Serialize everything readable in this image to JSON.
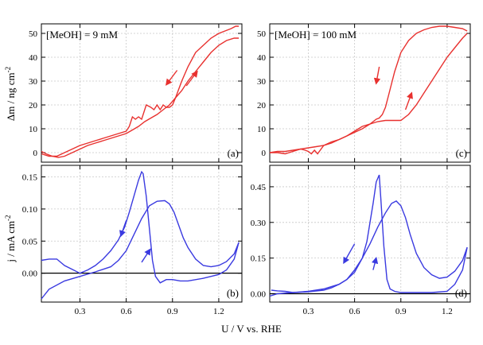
{
  "chart_data": [
    {
      "panel": "(a)",
      "type": "line",
      "annotation": "[MeOH] = 9 mM",
      "xlabel": "",
      "ylabel": "Δm / ng cm",
      "ylabel_sup": "-2",
      "xlim": [
        0.05,
        1.35
      ],
      "ylim": [
        -4,
        54
      ],
      "xticks": [
        0.3,
        0.6,
        0.9,
        1.2
      ],
      "yticks": [
        0,
        10,
        20,
        30,
        40,
        50
      ],
      "ytick_labels": [
        "0",
        "10",
        "20",
        "30",
        "40",
        "50"
      ],
      "color": "#e8312f",
      "series": [
        {
          "x": [
            0.05,
            0.08,
            0.12,
            0.16,
            0.2,
            0.25,
            0.3,
            0.35,
            0.4,
            0.45,
            0.5,
            0.55,
            0.6,
            0.64,
            0.68,
            0.72,
            0.76,
            0.8,
            0.84,
            0.88,
            0.92,
            0.96,
            1.0,
            1.05,
            1.1,
            1.15,
            1.2,
            1.25,
            1.3,
            1.33
          ],
          "y": [
            0.5,
            -0.5,
            -1.5,
            -2,
            -1.5,
            0,
            1.5,
            3,
            4,
            5,
            6,
            7,
            8,
            9.5,
            11,
            13,
            14.5,
            16,
            18,
            20,
            23,
            26,
            30,
            34,
            38,
            42,
            45,
            47,
            48,
            48
          ]
        },
        {
          "x": [
            1.33,
            1.31,
            1.28,
            1.24,
            1.2,
            1.15,
            1.1,
            1.05,
            1.0,
            0.96,
            0.92,
            0.9,
            0.88,
            0.86,
            0.84,
            0.82,
            0.8,
            0.78,
            0.76,
            0.73,
            0.7,
            0.68,
            0.66,
            0.64,
            0.62,
            0.6,
            0.55,
            0.5,
            0.45,
            0.4,
            0.35,
            0.3,
            0.25,
            0.2,
            0.15,
            0.1,
            0.05
          ],
          "y": [
            53,
            53,
            52,
            51,
            50,
            48,
            45,
            42,
            36,
            30,
            23,
            20,
            19,
            19,
            20,
            18,
            20,
            18,
            19,
            20,
            14,
            15,
            14,
            15,
            11,
            9,
            8,
            7,
            6,
            5,
            4,
            3,
            1.5,
            0,
            -1.5,
            -1.5,
            -0.5
          ]
        }
      ],
      "arrows": [
        {
          "x1": 0.93,
          "y1": 34.5,
          "x2": 0.86,
          "y2": 28.5
        },
        {
          "x1": 0.99,
          "y1": 28,
          "x2": 1.06,
          "y2": 34
        }
      ]
    },
    {
      "panel": "(b)",
      "type": "line",
      "annotation": "",
      "xlabel": "",
      "ylabel": "j / mA cm",
      "ylabel_sup": "-2",
      "xlim": [
        0.05,
        1.35
      ],
      "ylim": [
        -0.045,
        0.168
      ],
      "xticks": [
        0.3,
        0.6,
        0.9,
        1.2
      ],
      "yticks": [
        0,
        0.05,
        0.1,
        0.15
      ],
      "ytick_labels": [
        "0.00",
        "0.05",
        "0.10",
        "0.15"
      ],
      "zero_line": true,
      "color": "#3a3ae0",
      "series": [
        {
          "x": [
            0.05,
            0.1,
            0.2,
            0.3,
            0.4,
            0.5,
            0.55,
            0.6,
            0.65,
            0.7,
            0.75,
            0.8,
            0.85,
            0.88,
            0.91,
            0.94,
            0.97,
            1.0,
            1.05,
            1.1,
            1.15,
            1.2,
            1.25,
            1.3,
            1.33
          ],
          "y": [
            -0.04,
            -0.025,
            -0.012,
            -0.005,
            0.002,
            0.01,
            0.02,
            0.035,
            0.06,
            0.085,
            0.105,
            0.112,
            0.113,
            0.108,
            0.095,
            0.075,
            0.055,
            0.04,
            0.022,
            0.012,
            0.01,
            0.012,
            0.018,
            0.03,
            0.048
          ]
        },
        {
          "x": [
            1.33,
            1.3,
            1.25,
            1.2,
            1.1,
            1.0,
            0.95,
            0.9,
            0.86,
            0.82,
            0.79,
            0.77,
            0.75,
            0.73,
            0.71,
            0.7,
            0.68,
            0.65,
            0.62,
            0.59,
            0.55,
            0.5,
            0.45,
            0.4,
            0.35,
            0.3,
            0.2,
            0.15,
            0.1,
            0.05
          ],
          "y": [
            0.048,
            0.022,
            0.005,
            -0.002,
            -0.008,
            -0.012,
            -0.012,
            -0.01,
            -0.01,
            -0.015,
            -0.005,
            0.02,
            0.07,
            0.12,
            0.155,
            0.158,
            0.145,
            0.12,
            0.095,
            0.072,
            0.052,
            0.035,
            0.022,
            0.012,
            0.005,
            0.0,
            0.012,
            0.022,
            0.022,
            0.02
          ]
        }
      ],
      "arrows": [
        {
          "x1": 0.6,
          "y1": 0.082,
          "x2": 0.565,
          "y2": 0.058
        },
        {
          "x1": 0.7,
          "y1": 0.017,
          "x2": 0.755,
          "y2": 0.037
        }
      ]
    },
    {
      "panel": "(c)",
      "type": "line",
      "annotation": "[MeOH] = 100 mM",
      "xlabel": "",
      "ylabel": "",
      "xlim": [
        0.05,
        1.35
      ],
      "ylim": [
        -4,
        54
      ],
      "xticks": [
        0.3,
        0.6,
        0.9,
        1.2
      ],
      "yticks": [
        0,
        10,
        20,
        30,
        40,
        50
      ],
      "ytick_labels": [
        "0",
        "10",
        "20",
        "30",
        "40",
        "50"
      ],
      "color": "#e8312f",
      "series": [
        {
          "x": [
            0.05,
            0.1,
            0.15,
            0.2,
            0.25,
            0.28,
            0.3,
            0.32,
            0.34,
            0.36,
            0.4,
            0.45,
            0.5,
            0.55,
            0.6,
            0.65,
            0.7,
            0.75,
            0.8,
            0.85,
            0.9,
            0.95,
            1.0,
            1.05,
            1.1,
            1.15,
            1.2,
            1.25,
            1.3,
            1.33
          ],
          "y": [
            0,
            0,
            -0.5,
            0.5,
            1.5,
            1,
            0.5,
            -0.5,
            1,
            -0.5,
            3,
            4,
            5.5,
            7,
            8.5,
            10,
            12,
            13,
            13.5,
            13.5,
            13.5,
            16,
            20,
            25,
            30,
            35,
            40,
            44,
            48,
            50
          ]
        },
        {
          "x": [
            1.33,
            1.3,
            1.25,
            1.2,
            1.15,
            1.1,
            1.05,
            1.0,
            0.95,
            0.9,
            0.86,
            0.82,
            0.8,
            0.78,
            0.76,
            0.74,
            0.72,
            0.7,
            0.65,
            0.6,
            0.55,
            0.5,
            0.45,
            0.4,
            0.35,
            0.3,
            0.25,
            0.2,
            0.15,
            0.1,
            0.05
          ],
          "y": [
            51,
            52,
            52.5,
            53,
            53,
            52.5,
            51.5,
            50,
            47,
            42,
            34,
            24,
            19,
            16,
            14.5,
            14,
            13,
            12,
            11,
            9,
            7,
            5.5,
            4.5,
            3,
            2.5,
            2,
            1.5,
            1,
            0.5,
            0.5,
            0
          ]
        }
      ],
      "arrows": [
        {
          "x1": 0.76,
          "y1": 36,
          "x2": 0.74,
          "y2": 29
        },
        {
          "x1": 0.93,
          "y1": 18,
          "x2": 0.97,
          "y2": 25
        }
      ]
    },
    {
      "panel": "(d)",
      "type": "line",
      "annotation": "",
      "xlabel": "",
      "ylabel": "",
      "xlim": [
        0.05,
        1.35
      ],
      "ylim": [
        -0.035,
        0.54
      ],
      "xticks": [
        0.3,
        0.6,
        0.9,
        1.2
      ],
      "yticks": [
        0,
        0.15,
        0.3,
        0.45
      ],
      "ytick_labels": [
        "0.00",
        "0.15",
        "0.30",
        "0.45"
      ],
      "zero_line": true,
      "color": "#3a3ae0",
      "series": [
        {
          "x": [
            0.05,
            0.1,
            0.2,
            0.3,
            0.4,
            0.5,
            0.55,
            0.6,
            0.65,
            0.7,
            0.75,
            0.8,
            0.84,
            0.87,
            0.9,
            0.93,
            0.96,
            1.0,
            1.05,
            1.1,
            1.15,
            1.2,
            1.25,
            1.3,
            1.33
          ],
          "y": [
            -0.01,
            0.0,
            0.005,
            0.01,
            0.02,
            0.04,
            0.06,
            0.1,
            0.15,
            0.21,
            0.28,
            0.34,
            0.38,
            0.39,
            0.37,
            0.32,
            0.25,
            0.17,
            0.11,
            0.08,
            0.065,
            0.07,
            0.095,
            0.14,
            0.195
          ]
        },
        {
          "x": [
            1.33,
            1.3,
            1.25,
            1.2,
            1.1,
            1.0,
            0.95,
            0.9,
            0.86,
            0.83,
            0.81,
            0.79,
            0.77,
            0.76,
            0.74,
            0.72,
            0.7,
            0.68,
            0.65,
            0.6,
            0.55,
            0.5,
            0.45,
            0.4,
            0.3,
            0.2,
            0.15,
            0.1,
            0.06
          ],
          "y": [
            0.195,
            0.1,
            0.04,
            0.01,
            0.005,
            0.005,
            0.005,
            0.005,
            0.01,
            0.02,
            0.06,
            0.2,
            0.4,
            0.5,
            0.47,
            0.38,
            0.3,
            0.22,
            0.15,
            0.09,
            0.06,
            0.04,
            0.025,
            0.015,
            0.008,
            0.005,
            0.01,
            0.012,
            0.015
          ]
        }
      ],
      "arrows": [
        {
          "x1": 0.6,
          "y1": 0.21,
          "x2": 0.53,
          "y2": 0.13
        },
        {
          "x1": 0.72,
          "y1": 0.1,
          "x2": 0.74,
          "y2": 0.15
        }
      ]
    }
  ],
  "figure": {
    "xlabel": "U / V vs. RHE",
    "xtick_labels": [
      "0.3",
      "0.6",
      "0.9",
      "1.2"
    ]
  }
}
